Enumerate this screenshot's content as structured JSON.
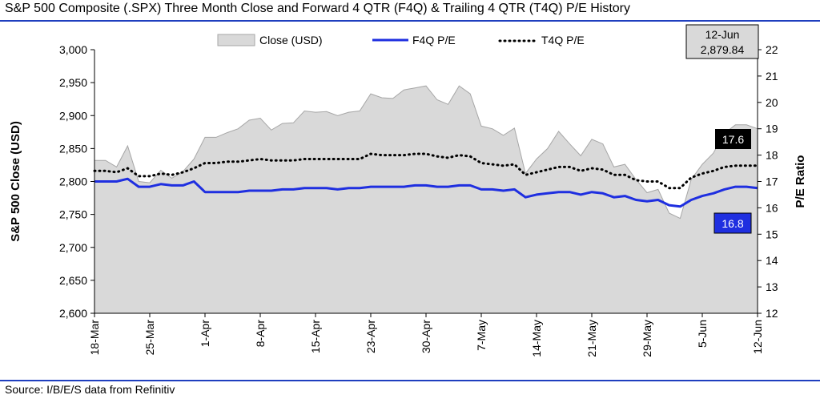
{
  "header": {
    "title": "S&P 500 Composite (.SPX) Three Month Close and Forward 4 QTR (F4Q) & Trailing 4 QTR (T4Q) P/E History"
  },
  "footer": {
    "source": "Source: I/B/E/S data from Refinitiv"
  },
  "colors": {
    "rule": "#1f3fbf",
    "close_fill": "#d9d9d9",
    "close_stroke": "#a6a6a6",
    "f4q": "#1f2fe0",
    "t4q": "#000000",
    "f4q_label_bg": "#1f2fe0",
    "t4q_label_bg": "#000000",
    "callout_bg": "#d9d9d9"
  },
  "chart_data": {
    "type": "area",
    "title": "",
    "ylabel": "S&P 500 Close (USD)",
    "y2label": "P/E Ratio",
    "ylim": [
      2600,
      3000
    ],
    "y_ticks": [
      "2,600",
      "2,650",
      "2,700",
      "2,750",
      "2,800",
      "2,850",
      "2,900",
      "2,950",
      "3,000"
    ],
    "y2lim": [
      12,
      22
    ],
    "y2_ticks": [
      "12",
      "13",
      "14",
      "15",
      "16",
      "17",
      "18",
      "19",
      "20",
      "21",
      "22"
    ],
    "x_tick_labels": [
      "18-Mar",
      "25-Mar",
      "1-Apr",
      "8-Apr",
      "15-Apr",
      "23-Apr",
      "30-Apr",
      "7-May",
      "14-May",
      "21-May",
      "29-May",
      "5-Jun",
      "12-Jun"
    ],
    "legend": [
      "Close (USD)",
      "F4Q P/E",
      "T4Q P/E"
    ],
    "legend_placement": "top",
    "callout": {
      "date": "12-Jun",
      "value": "2,879.84"
    },
    "end_labels": {
      "t4q": "17.6",
      "f4q": "16.8"
    },
    "series": [
      {
        "name": "Close (USD)",
        "axis": "left",
        "values": [
          2832,
          2832,
          2822,
          2854,
          2800,
          2798,
          2817,
          2805,
          2815,
          2834,
          2867,
          2867,
          2874,
          2880,
          2893,
          2896,
          2878,
          2888,
          2889,
          2907,
          2905,
          2906,
          2900,
          2905,
          2907,
          2933,
          2927,
          2926,
          2939,
          2942,
          2945,
          2924,
          2917,
          2945,
          2933,
          2884,
          2880,
          2870,
          2881,
          2812,
          2834,
          2850,
          2876,
          2857,
          2839,
          2864,
          2857,
          2822,
          2826,
          2803,
          2783,
          2788,
          2752,
          2744,
          2803,
          2826,
          2843,
          2873,
          2886,
          2886,
          2880
        ]
      },
      {
        "name": "F4Q P/E",
        "axis": "right",
        "values": [
          17.0,
          17.0,
          17.0,
          17.1,
          16.8,
          16.8,
          16.9,
          16.85,
          16.85,
          17.0,
          16.6,
          16.6,
          16.6,
          16.6,
          16.65,
          16.65,
          16.65,
          16.7,
          16.7,
          16.75,
          16.75,
          16.75,
          16.7,
          16.75,
          16.75,
          16.8,
          16.8,
          16.8,
          16.8,
          16.85,
          16.85,
          16.8,
          16.8,
          16.85,
          16.85,
          16.7,
          16.7,
          16.65,
          16.7,
          16.4,
          16.5,
          16.55,
          16.6,
          16.6,
          16.5,
          16.6,
          16.55,
          16.4,
          16.45,
          16.3,
          16.25,
          16.3,
          16.1,
          16.05,
          16.3,
          16.45,
          16.55,
          16.7,
          16.8,
          16.8,
          16.75
        ]
      },
      {
        "name": "T4Q P/E",
        "axis": "right",
        "values": [
          17.4,
          17.4,
          17.35,
          17.5,
          17.2,
          17.2,
          17.3,
          17.25,
          17.35,
          17.5,
          17.7,
          17.7,
          17.75,
          17.75,
          17.8,
          17.85,
          17.8,
          17.8,
          17.8,
          17.85,
          17.85,
          17.85,
          17.85,
          17.85,
          17.85,
          18.05,
          18.0,
          18.0,
          18.0,
          18.05,
          18.05,
          17.95,
          17.9,
          18.0,
          17.95,
          17.7,
          17.65,
          17.6,
          17.65,
          17.25,
          17.35,
          17.45,
          17.55,
          17.55,
          17.4,
          17.5,
          17.45,
          17.25,
          17.25,
          17.05,
          17.0,
          17.0,
          16.75,
          16.75,
          17.15,
          17.3,
          17.4,
          17.55,
          17.6,
          17.6,
          17.6
        ]
      }
    ]
  }
}
